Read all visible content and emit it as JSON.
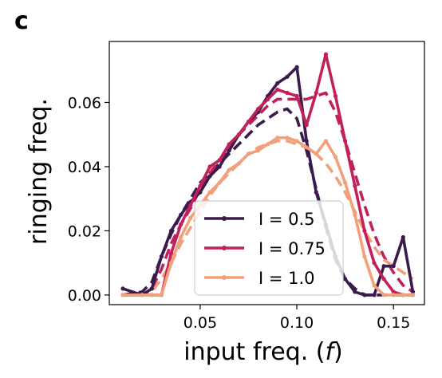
{
  "panel_label": "c",
  "chart_data": {
    "type": "line",
    "xlabel": "input freq. (",
    "xlabel_italic": "f",
    "xlabel_close": ")",
    "ylabel": "ringing freq.",
    "xlim": [
      0.003,
      0.166
    ],
    "ylim": [
      -0.003,
      0.079
    ],
    "xticks": [
      0.05,
      0.1,
      0.15
    ],
    "xtick_labels": [
      "0.05",
      "0.10",
      "0.15"
    ],
    "yticks": [
      0.0,
      0.02,
      0.04,
      0.06
    ],
    "ytick_labels": [
      "0.00",
      "0.02",
      "0.04",
      "0.06"
    ],
    "grid": false,
    "legend_position": "lower-center",
    "x": [
      0.01,
      0.02,
      0.025,
      0.03,
      0.035,
      0.04,
      0.045,
      0.05,
      0.055,
      0.06,
      0.065,
      0.07,
      0.075,
      0.08,
      0.085,
      0.09,
      0.095,
      0.1,
      0.105,
      0.11,
      0.115,
      0.12,
      0.125,
      0.13,
      0.135,
      0.14,
      0.145,
      0.15,
      0.155,
      0.16
    ],
    "series": [
      {
        "name": "I = 0.5",
        "color": "#3b1a4c",
        "values": [
          0.002,
          0.0,
          0.002,
          0.012,
          0.02,
          0.025,
          0.029,
          0.032,
          0.037,
          0.04,
          0.045,
          0.05,
          0.054,
          0.057,
          0.062,
          0.066,
          0.068,
          0.071,
          0.048,
          0.032,
          0.022,
          0.012,
          0.005,
          0.001,
          0.0,
          0.0,
          0.009,
          0.009,
          0.018,
          0.001
        ]
      },
      {
        "name": "I = 0.75",
        "color": "#c2205a",
        "values": [
          0.0,
          0.0,
          0.0,
          0.0,
          0.013,
          0.022,
          0.028,
          0.034,
          0.04,
          0.042,
          0.047,
          0.05,
          0.054,
          0.058,
          0.061,
          0.064,
          0.063,
          0.062,
          0.053,
          0.063,
          0.075,
          0.062,
          0.048,
          0.034,
          0.02,
          0.01,
          0.005,
          0.001,
          0.0,
          0.0
        ]
      },
      {
        "name": "I = 1.0",
        "color": "#f2a07c",
        "values": [
          0.0,
          0.0,
          0.0,
          0.0,
          0.01,
          0.018,
          0.024,
          0.028,
          0.032,
          0.035,
          0.039,
          0.041,
          0.044,
          0.045,
          0.047,
          0.049,
          0.049,
          0.048,
          0.046,
          0.044,
          0.048,
          0.043,
          0.035,
          0.025,
          0.012,
          0.003,
          0.0,
          0.0,
          0.0,
          0.0
        ]
      }
    ],
    "series_dashed": [
      {
        "color": "#3b1a4c",
        "values": [
          0.0,
          0.001,
          0.004,
          0.012,
          0.019,
          0.025,
          0.03,
          0.035,
          0.038,
          0.041,
          0.044,
          0.047,
          0.05,
          0.053,
          0.055,
          0.057,
          0.058,
          0.055,
          0.045,
          0.033,
          0.021,
          0.011,
          0.005,
          0.002,
          0.0,
          0.0,
          0.0,
          0.0,
          0.0,
          0.0
        ]
      },
      {
        "color": "#c2205a",
        "values": [
          0.0,
          0.0,
          0.002,
          0.008,
          0.016,
          0.022,
          0.027,
          0.033,
          0.038,
          0.042,
          0.046,
          0.05,
          0.053,
          0.056,
          0.059,
          0.061,
          0.061,
          0.061,
          0.061,
          0.062,
          0.063,
          0.057,
          0.048,
          0.038,
          0.028,
          0.019,
          0.012,
          0.007,
          0.003,
          0.001
        ]
      },
      {
        "color": "#f2a07c",
        "values": [
          0.0,
          0.0,
          0.001,
          0.005,
          0.01,
          0.016,
          0.021,
          0.026,
          0.031,
          0.035,
          0.038,
          0.041,
          0.044,
          0.046,
          0.047,
          0.048,
          0.048,
          0.047,
          0.046,
          0.044,
          0.041,
          0.037,
          0.032,
          0.026,
          0.02,
          0.015,
          0.011,
          0.009,
          0.007,
          0.005
        ]
      }
    ]
  }
}
